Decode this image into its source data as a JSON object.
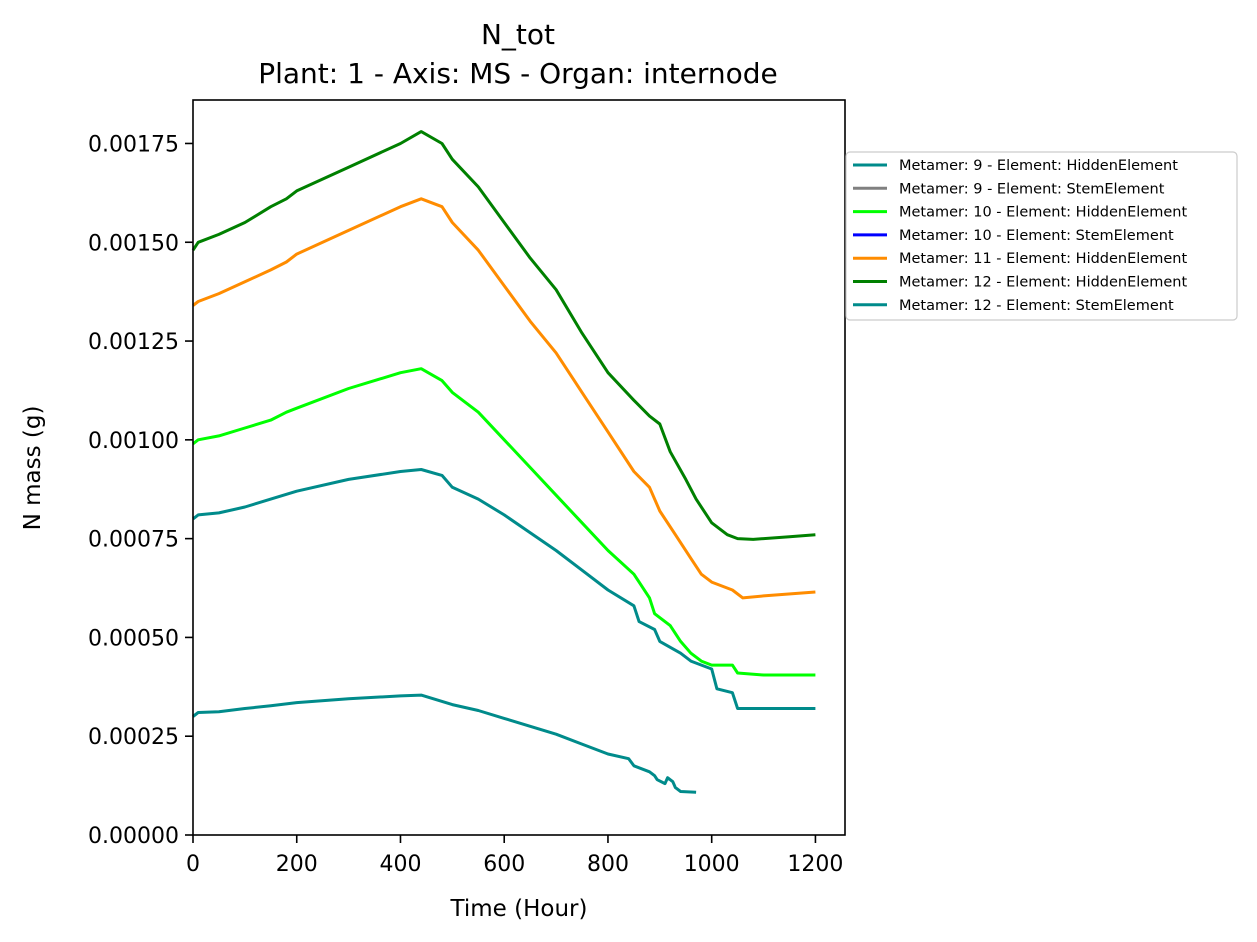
{
  "chart_data": {
    "type": "line",
    "title": "N_tot",
    "subtitle": "Plant: 1 - Axis: MS - Organ: internode",
    "xlabel": "Time (Hour)",
    "ylabel": "N mass (g)",
    "xlim": [
      0,
      1257
    ],
    "ylim": [
      0,
      0.00186
    ],
    "x_ticks": [
      0,
      200,
      400,
      600,
      800,
      1000,
      1200
    ],
    "x_tick_labels": [
      "0",
      "200",
      "400",
      "600",
      "800",
      "1000",
      "1200"
    ],
    "y_ticks": [
      0,
      0.00025,
      0.0005,
      0.00075,
      0.001,
      0.00125,
      0.0015,
      0.00175
    ],
    "y_tick_labels": [
      "0.00000",
      "0.00025",
      "0.00050",
      "0.00075",
      "0.00100",
      "0.00125",
      "0.00150",
      "0.00175"
    ],
    "grid": false,
    "legend_placement": "outside-right-top",
    "series": [
      {
        "name": "Metamer: 9 - Element: HiddenElement",
        "color": "#008b8b",
        "points": [
          [
            0,
            0.0003
          ],
          [
            10,
            0.00031
          ],
          [
            50,
            0.000312
          ],
          [
            100,
            0.00032
          ],
          [
            150,
            0.000327
          ],
          [
            200,
            0.000335
          ],
          [
            300,
            0.000345
          ],
          [
            400,
            0.000352
          ],
          [
            440,
            0.000354
          ],
          [
            500,
            0.00033
          ],
          [
            550,
            0.000315
          ],
          [
            600,
            0.000295
          ],
          [
            650,
            0.000275
          ],
          [
            700,
            0.000255
          ],
          [
            750,
            0.00023
          ],
          [
            800,
            0.000205
          ],
          [
            840,
            0.000193
          ],
          [
            850,
            0.000175
          ],
          [
            880,
            0.00016
          ],
          [
            890,
            0.00015
          ],
          [
            895,
            0.00014
          ],
          [
            910,
            0.00013
          ],
          [
            915,
            0.000145
          ],
          [
            925,
            0.000135
          ],
          [
            930,
            0.00012
          ],
          [
            940,
            0.00011
          ],
          [
            970,
            0.000108
          ]
        ]
      },
      {
        "name": "Metamer: 9 - Element: StemElement",
        "color": "#808080",
        "points": []
      },
      {
        "name": "Metamer: 10 - Element: HiddenElement",
        "color": "#00ff00",
        "points": [
          [
            0,
            0.00099
          ],
          [
            10,
            0.001
          ],
          [
            50,
            0.00101
          ],
          [
            100,
            0.00103
          ],
          [
            150,
            0.00105
          ],
          [
            180,
            0.00107
          ],
          [
            200,
            0.00108
          ],
          [
            300,
            0.00113
          ],
          [
            400,
            0.00117
          ],
          [
            440,
            0.00118
          ],
          [
            480,
            0.00115
          ],
          [
            500,
            0.00112
          ],
          [
            550,
            0.00107
          ],
          [
            600,
            0.001
          ],
          [
            650,
            0.00093
          ],
          [
            700,
            0.00086
          ],
          [
            750,
            0.00079
          ],
          [
            800,
            0.00072
          ],
          [
            850,
            0.00066
          ],
          [
            860,
            0.00064
          ],
          [
            880,
            0.0006
          ],
          [
            890,
            0.00056
          ],
          [
            920,
            0.00053
          ],
          [
            940,
            0.00049
          ],
          [
            960,
            0.00046
          ],
          [
            980,
            0.00044
          ],
          [
            1000,
            0.00043
          ],
          [
            1040,
            0.00043
          ],
          [
            1050,
            0.00041
          ],
          [
            1100,
            0.000405
          ],
          [
            1200,
            0.000405
          ]
        ]
      },
      {
        "name": "Metamer: 10 - Element: StemElement",
        "color": "#0000ff",
        "points": []
      },
      {
        "name": "Metamer: 11 - Element: HiddenElement",
        "color": "#ff8c00",
        "points": [
          [
            0,
            0.00134
          ],
          [
            10,
            0.00135
          ],
          [
            50,
            0.00137
          ],
          [
            100,
            0.0014
          ],
          [
            150,
            0.00143
          ],
          [
            180,
            0.00145
          ],
          [
            200,
            0.00147
          ],
          [
            300,
            0.00153
          ],
          [
            400,
            0.00159
          ],
          [
            440,
            0.00161
          ],
          [
            480,
            0.00159
          ],
          [
            500,
            0.00155
          ],
          [
            550,
            0.00148
          ],
          [
            600,
            0.00139
          ],
          [
            650,
            0.0013
          ],
          [
            700,
            0.00122
          ],
          [
            750,
            0.00112
          ],
          [
            800,
            0.00102
          ],
          [
            850,
            0.00092
          ],
          [
            880,
            0.00088
          ],
          [
            900,
            0.00082
          ],
          [
            930,
            0.00076
          ],
          [
            960,
            0.0007
          ],
          [
            980,
            0.00066
          ],
          [
            1000,
            0.00064
          ],
          [
            1040,
            0.00062
          ],
          [
            1060,
            0.0006
          ],
          [
            1100,
            0.000605
          ],
          [
            1200,
            0.000615
          ]
        ]
      },
      {
        "name": "Metamer: 12 - Element: HiddenElement",
        "color": "#008000",
        "points": [
          [
            0,
            0.00148
          ],
          [
            10,
            0.0015
          ],
          [
            50,
            0.00152
          ],
          [
            100,
            0.00155
          ],
          [
            150,
            0.00159
          ],
          [
            180,
            0.00161
          ],
          [
            200,
            0.00163
          ],
          [
            300,
            0.00169
          ],
          [
            400,
            0.00175
          ],
          [
            440,
            0.00178
          ],
          [
            480,
            0.00175
          ],
          [
            500,
            0.00171
          ],
          [
            550,
            0.00164
          ],
          [
            600,
            0.00155
          ],
          [
            650,
            0.00146
          ],
          [
            700,
            0.00138
          ],
          [
            750,
            0.00127
          ],
          [
            800,
            0.00117
          ],
          [
            850,
            0.0011
          ],
          [
            880,
            0.00106
          ],
          [
            900,
            0.00104
          ],
          [
            920,
            0.00097
          ],
          [
            950,
            0.0009
          ],
          [
            970,
            0.00085
          ],
          [
            1000,
            0.00079
          ],
          [
            1030,
            0.00076
          ],
          [
            1050,
            0.00075
          ],
          [
            1080,
            0.000748
          ],
          [
            1150,
            0.000755
          ],
          [
            1200,
            0.00076
          ]
        ]
      },
      {
        "name": "Metamer: 12 - Element: StemElement",
        "color": "#008b8b",
        "points": [
          [
            0,
            0.0008
          ],
          [
            10,
            0.00081
          ],
          [
            50,
            0.000815
          ],
          [
            100,
            0.00083
          ],
          [
            150,
            0.00085
          ],
          [
            200,
            0.00087
          ],
          [
            300,
            0.0009
          ],
          [
            400,
            0.00092
          ],
          [
            440,
            0.000925
          ],
          [
            480,
            0.00091
          ],
          [
            500,
            0.00088
          ],
          [
            550,
            0.00085
          ],
          [
            600,
            0.00081
          ],
          [
            650,
            0.000765
          ],
          [
            700,
            0.00072
          ],
          [
            750,
            0.00067
          ],
          [
            800,
            0.00062
          ],
          [
            850,
            0.00058
          ],
          [
            860,
            0.00054
          ],
          [
            890,
            0.00052
          ],
          [
            900,
            0.00049
          ],
          [
            940,
            0.00046
          ],
          [
            960,
            0.00044
          ],
          [
            1000,
            0.00042
          ],
          [
            1010,
            0.00037
          ],
          [
            1040,
            0.00036
          ],
          [
            1050,
            0.00032
          ],
          [
            1200,
            0.00032
          ]
        ]
      }
    ]
  }
}
